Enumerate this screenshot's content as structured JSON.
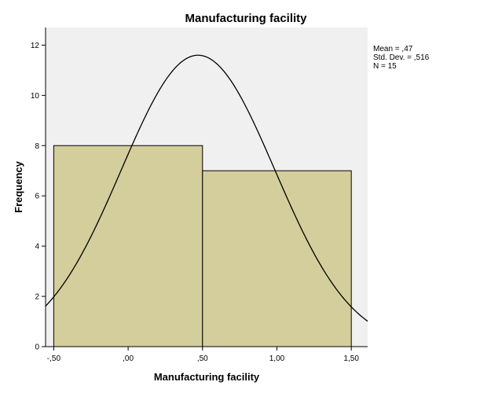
{
  "chart_data": {
    "type": "bar",
    "subtype": "histogram",
    "title": "Manufacturing facility",
    "xlabel": "Manufacturing facility",
    "ylabel": "Frequency",
    "bins": [
      {
        "start": -0.5,
        "end": 0.5,
        "value": 8
      },
      {
        "start": 0.5,
        "end": 1.5,
        "value": 7
      }
    ],
    "x_ticks": [
      {
        "value": -0.5,
        "label": "-,50"
      },
      {
        "value": 0.0,
        "label": ",00"
      },
      {
        "value": 0.5,
        "label": ",50"
      },
      {
        "value": 1.0,
        "label": "1,00"
      },
      {
        "value": 1.5,
        "label": "1,50"
      }
    ],
    "y_ticks": [
      {
        "value": 0,
        "label": "0"
      },
      {
        "value": 2,
        "label": "2"
      },
      {
        "value": 4,
        "label": "4"
      },
      {
        "value": 6,
        "label": "6"
      },
      {
        "value": 8,
        "label": "8"
      },
      {
        "value": 10,
        "label": "10"
      },
      {
        "value": 12,
        "label": "12"
      }
    ],
    "xlim": [
      -0.555,
      1.61
    ],
    "ylim": [
      0,
      12.7
    ],
    "normal_curve": {
      "mean": 0.47,
      "sd": 0.516,
      "n": 15,
      "bin_width": 1
    },
    "stats_lines": [
      "Mean = ,47",
      "Std. Dev. = ,516",
      "N = 15"
    ],
    "grid": false,
    "legend_position": "top-right",
    "colors": {
      "plot_background": "#f0f0f0",
      "bar_fill": "#d3ce9b",
      "bar_stroke": "#000000",
      "curve": "#000000"
    }
  }
}
